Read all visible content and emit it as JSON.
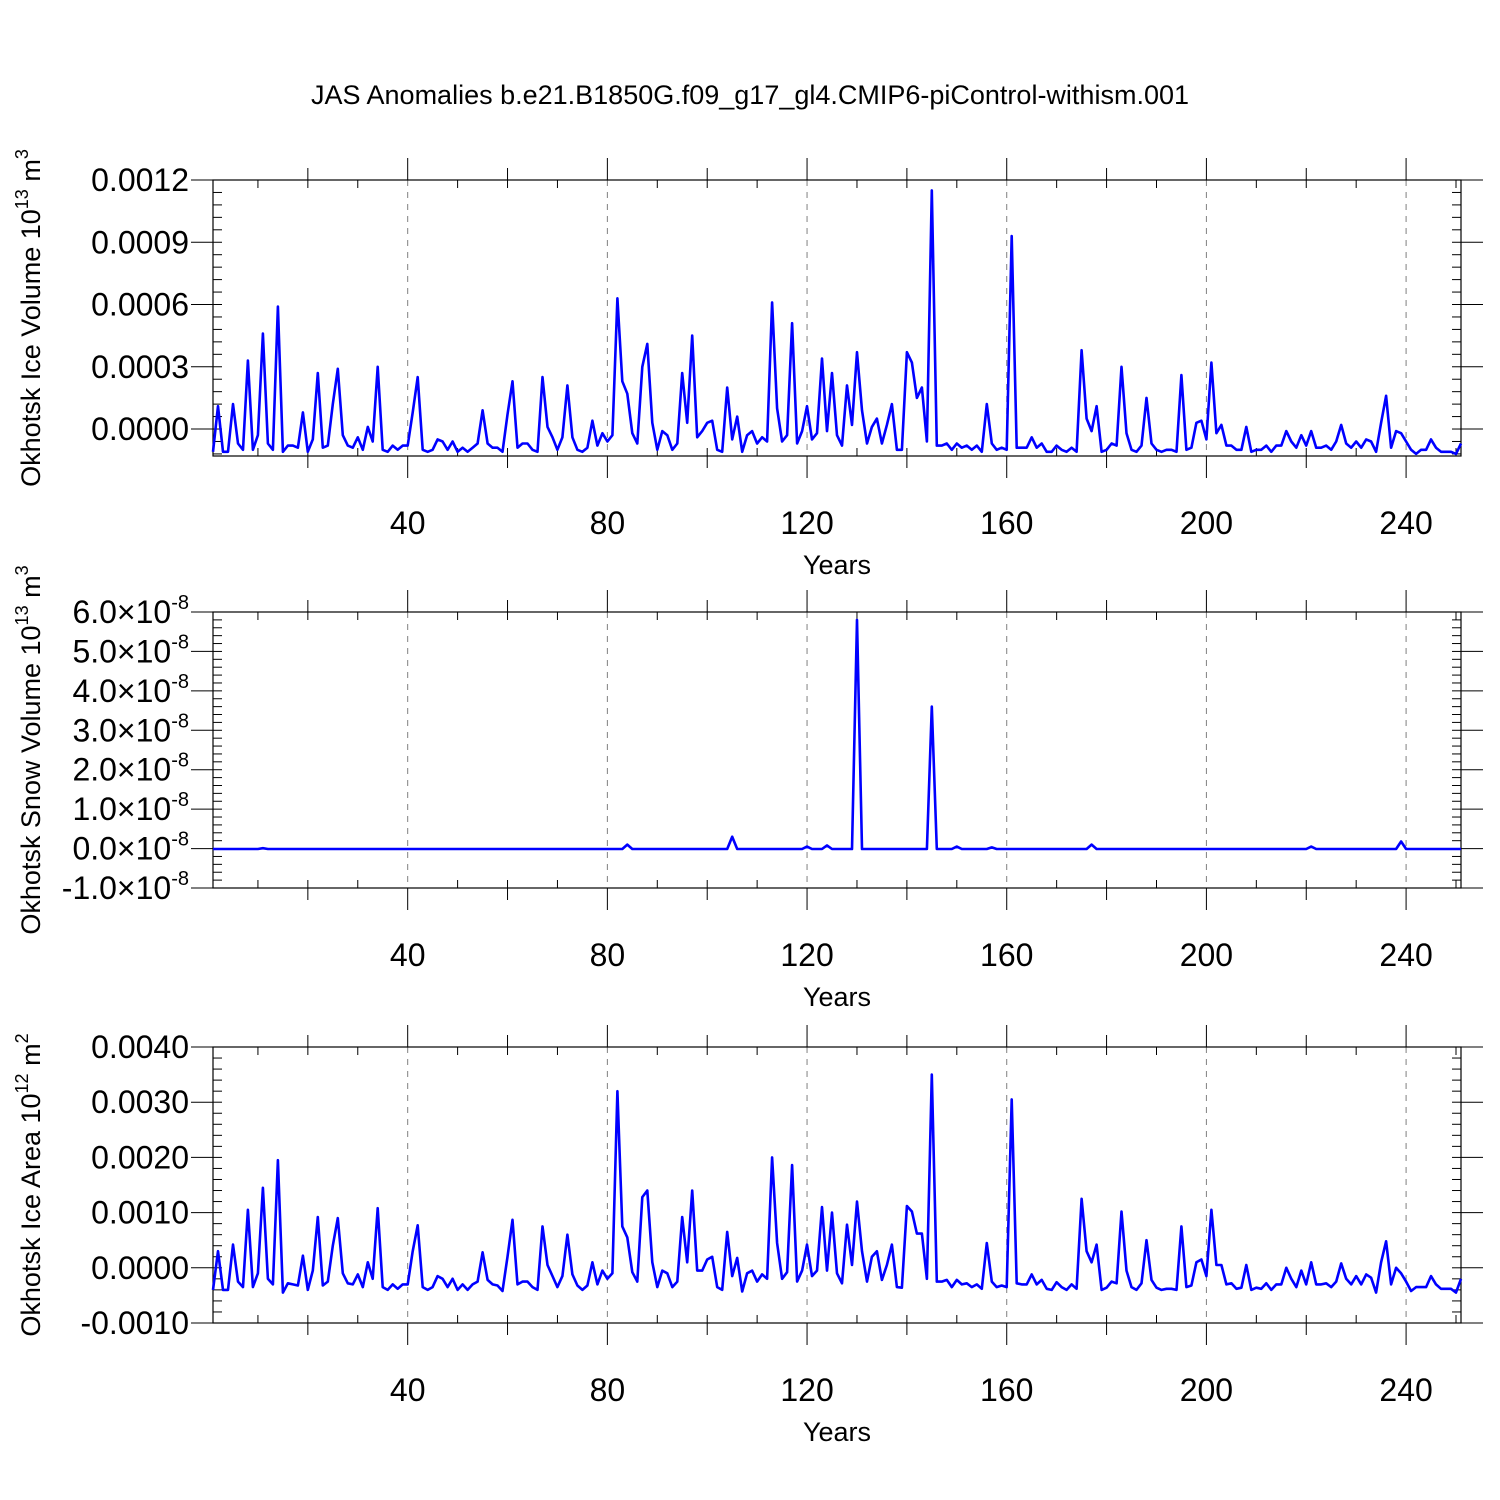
{
  "title": "JAS Anomalies b.e21.B1850G.f09_g17_gl4.CMIP6-piControl-withism.001",
  "colors": {
    "line": "#0000ff",
    "axes": "#000000",
    "grid": "#808080"
  },
  "chart_data": [
    {
      "type": "line",
      "ylabel": "Okhotsk Ice Volume 10",
      "ylabel_exp": "13",
      "ylabel_unit": " m",
      "ylabel_unit_exp": "3",
      "xlabel": "Years",
      "xlim": [
        1,
        251
      ],
      "ylim": [
        -0.00013,
        0.0012
      ],
      "xticks": [
        40,
        80,
        120,
        160,
        200,
        240
      ],
      "xtick_labels": [
        "40",
        "80",
        "120",
        "160",
        "200",
        "240"
      ],
      "yticks": [
        0.0,
        0.0003,
        0.0006,
        0.0009,
        0.0012
      ],
      "ytick_labels": [
        "0.0000",
        "0.0003",
        "0.0006",
        "0.0009",
        "0.0012"
      ],
      "grid_x": true,
      "series": [
        {
          "x_start": 1,
          "x_step": 1,
          "values": [
            -0.00011,
            0.00011,
            -0.00011,
            -0.00011,
            0.00012,
            -7e-05,
            -0.0001,
            0.00033,
            -0.0001,
            -3e-05,
            0.00046,
            -7e-05,
            -0.0001,
            0.00059,
            -0.00011,
            -8e-05,
            -8e-05,
            -9e-05,
            8e-05,
            -0.00011,
            -5e-05,
            0.00027,
            -9e-05,
            -8e-05,
            0.00012,
            0.00029,
            -3e-05,
            -8e-05,
            -9e-05,
            -4e-05,
            -0.0001,
            1e-05,
            -6e-05,
            0.0003,
            -0.0001,
            -0.00011,
            -8e-05,
            -0.0001,
            -8e-05,
            -8e-05,
            8e-05,
            0.00025,
            -0.0001,
            -0.00011,
            -0.0001,
            -5e-05,
            -6e-05,
            -0.0001,
            -6e-05,
            -0.00011,
            -9e-05,
            -0.00011,
            -9e-05,
            -7e-05,
            9e-05,
            -7e-05,
            -9e-05,
            -9e-05,
            -0.00011,
            7e-05,
            0.00023,
            -9e-05,
            -7e-05,
            -7e-05,
            -0.0001,
            -0.00011,
            0.00025,
            1e-05,
            -4e-05,
            -0.0001,
            -4e-05,
            0.00021,
            -4e-05,
            -0.0001,
            -0.00011,
            -9e-05,
            4e-05,
            -8e-05,
            -2e-05,
            -6e-05,
            -3e-05,
            0.00063,
            0.00023,
            0.00017,
            -2e-05,
            -7e-05,
            0.0003,
            0.00041,
            3e-05,
            -0.0001,
            -1e-05,
            -3e-05,
            -0.0001,
            -7e-05,
            0.00027,
            3e-05,
            0.00045,
            -4e-05,
            -1e-05,
            3e-05,
            4e-05,
            -0.0001,
            -0.00011,
            0.0002,
            -5e-05,
            6e-05,
            -0.00011,
            -3e-05,
            -1e-05,
            -7e-05,
            -4e-05,
            -6e-05,
            0.00061,
            0.0001,
            -6e-05,
            -3e-05,
            0.00051,
            -7e-05,
            -1e-05,
            0.00011,
            -5e-05,
            -2e-05,
            0.00034,
            -1e-05,
            0.00027,
            -3e-05,
            -8e-05,
            0.00021,
            2e-05,
            0.00037,
            9e-05,
            -7e-05,
            1e-05,
            5e-05,
            -7e-05,
            2e-05,
            0.00012,
            -0.0001,
            -0.0001,
            0.00037,
            0.00032,
            0.00015,
            0.0002,
            -6e-05,
            0.00115,
            -8e-05,
            -8e-05,
            -7e-05,
            -0.0001,
            -7e-05,
            -9e-05,
            -8e-05,
            -0.0001,
            -8e-05,
            -0.00011,
            0.00012,
            -7e-05,
            -0.0001,
            -9e-05,
            -0.0001,
            0.00093,
            -9e-05,
            -9e-05,
            -9e-05,
            -4e-05,
            -9e-05,
            -7e-05,
            -0.00011,
            -0.00011,
            -8e-05,
            -0.0001,
            -0.00011,
            -9e-05,
            -0.00011,
            0.00038,
            5e-05,
            -1e-05,
            0.00011,
            -0.00011,
            -0.0001,
            -7e-05,
            -8e-05,
            0.0003,
            -2e-05,
            -0.0001,
            -0.00011,
            -8e-05,
            0.00015,
            -7e-05,
            -0.0001,
            -0.00011,
            -0.0001,
            -0.0001,
            -0.00011,
            0.00026,
            -0.0001,
            -9e-05,
            3e-05,
            4e-05,
            -5e-05,
            0.00032,
            -2e-05,
            2e-05,
            -8e-05,
            -8e-05,
            -0.0001,
            -0.0001,
            1e-05,
            -0.00011,
            -0.0001,
            -0.0001,
            -8e-05,
            -0.00011,
            -8e-05,
            -8e-05,
            -1e-05,
            -6e-05,
            -9e-05,
            -3e-05,
            -8e-05,
            -1e-05,
            -9e-05,
            -9e-05,
            -8e-05,
            -0.0001,
            -6e-05,
            2e-05,
            -7e-05,
            -9e-05,
            -6e-05,
            -9e-05,
            -5e-05,
            -6e-05,
            -0.00011,
            3e-05,
            0.00016,
            -9e-05,
            -1e-05,
            -2e-05,
            -6e-05,
            -0.0001,
            -0.00012,
            -0.0001,
            -0.0001,
            -5e-05,
            -9e-05,
            -0.00011,
            -0.00011,
            -0.00011,
            -0.00012,
            -7e-05
          ]
        }
      ]
    },
    {
      "type": "line",
      "ylabel": "Okhotsk Snow Volume 10",
      "ylabel_exp": "13",
      "ylabel_unit": " m",
      "ylabel_unit_exp": "3",
      "xlabel": "Years",
      "xlim": [
        1,
        251
      ],
      "ylim": [
        -1e-08,
        6e-08
      ],
      "xticks": [
        40,
        80,
        120,
        160,
        200,
        240
      ],
      "xtick_labels": [
        "40",
        "80",
        "120",
        "160",
        "200",
        "240"
      ],
      "yticks": [
        -1e-08,
        0.0,
        1e-08,
        2e-08,
        3e-08,
        4e-08,
        5e-08,
        6e-08
      ],
      "ytick_labels": [
        "-1.0",
        "0.0",
        "1.0",
        "2.0",
        "3.0",
        "4.0",
        "5.0",
        "6.0"
      ],
      "ytick_suffix": "×10",
      "ytick_exp": "-8",
      "grid_x": true,
      "series": [
        {
          "x_start": 1,
          "x_step": 1,
          "spikes": [
            [
              11,
              1e-10
            ],
            [
              84,
              1e-09
            ],
            [
              105,
              3e-09
            ],
            [
              120,
              5e-10
            ],
            [
              124,
              8e-10
            ],
            [
              130,
              5.8e-08
            ],
            [
              145,
              3.6e-08
            ],
            [
              150,
              5e-10
            ],
            [
              157,
              3e-10
            ],
            [
              177,
              1e-09
            ],
            [
              221,
              5e-10
            ],
            [
              239,
              1.8e-09
            ]
          ],
          "baseline": -1e-10
        }
      ]
    },
    {
      "type": "line",
      "ylabel": "Okhotsk Ice Area 10",
      "ylabel_exp": "12",
      "ylabel_unit": " m",
      "ylabel_unit_exp": "2",
      "xlabel": "Years",
      "xlim": [
        1,
        251
      ],
      "ylim": [
        -0.001,
        0.004
      ],
      "xticks": [
        40,
        80,
        120,
        160,
        200,
        240
      ],
      "xtick_labels": [
        "40",
        "80",
        "120",
        "160",
        "200",
        "240"
      ],
      "yticks": [
        -0.001,
        0.0,
        0.001,
        0.002,
        0.003,
        0.004
      ],
      "ytick_labels": [
        "-0.0010",
        "0.0000",
        "0.0010",
        "0.0020",
        "0.0030",
        "0.0040"
      ],
      "grid_x": true,
      "series": [
        {
          "x_start": 1,
          "x_step": 1,
          "values": [
            -0.0004,
            0.0003,
            -0.0004,
            -0.0004,
            0.00042,
            -0.00025,
            -0.00035,
            0.00105,
            -0.00035,
            -0.0001,
            0.00145,
            -0.0002,
            -0.0003,
            0.00195,
            -0.00045,
            -0.00028,
            -0.0003,
            -0.00032,
            0.00022,
            -0.0004,
            -5e-05,
            0.00092,
            -0.00032,
            -0.00025,
            0.0004,
            0.0009,
            -0.0001,
            -0.00028,
            -0.0003,
            -0.00012,
            -0.00035,
            0.0001,
            -0.0002,
            0.00108,
            -0.00035,
            -0.0004,
            -0.0003,
            -0.00038,
            -0.0003,
            -0.0003,
            0.0003,
            0.00077,
            -0.00035,
            -0.0004,
            -0.00035,
            -0.00015,
            -0.0002,
            -0.00035,
            -0.0002,
            -0.0004,
            -0.0003,
            -0.0004,
            -0.0003,
            -0.00025,
            0.00028,
            -0.00022,
            -0.0003,
            -0.00032,
            -0.00042,
            0.0002,
            0.00087,
            -0.0003,
            -0.00025,
            -0.00025,
            -0.00035,
            -0.0004,
            0.00075,
            5e-05,
            -0.00015,
            -0.00035,
            -0.00015,
            0.0006,
            -0.00012,
            -0.00032,
            -0.0004,
            -0.00032,
            0.0001,
            -0.0003,
            -5e-05,
            -0.0002,
            -0.0001,
            0.0032,
            0.00075,
            0.00055,
            -8e-05,
            -0.00025,
            0.00128,
            0.0014,
            0.0001,
            -0.00035,
            -5e-05,
            -0.0001,
            -0.00035,
            -0.00025,
            0.00092,
            0.0001,
            0.0014,
            -5e-05,
            -5e-05,
            0.00015,
            0.0002,
            -0.00035,
            -0.0004,
            0.00065,
            -0.00015,
            0.00018,
            -0.00043,
            -0.0001,
            -5e-05,
            -0.00025,
            -0.00012,
            -0.0002,
            0.002,
            0.00045,
            -0.0002,
            -8e-05,
            0.00186,
            -0.00025,
            -5e-05,
            0.00042,
            -0.00015,
            -5e-05,
            0.0011,
            -5e-05,
            0.001,
            -0.0001,
            -0.00028,
            0.00078,
            5e-05,
            0.0012,
            0.0003,
            -0.00025,
            0.0002,
            0.0003,
            -0.00022,
            5e-05,
            0.00042,
            -0.00035,
            -0.00036,
            0.00112,
            0.00102,
            0.00062,
            0.00062,
            -0.0002,
            0.0035,
            -0.00025,
            -0.00025,
            -0.00022,
            -0.00035,
            -0.00022,
            -0.0003,
            -0.00028,
            -0.00035,
            -0.0003,
            -0.00038,
            0.00045,
            -0.00025,
            -0.00035,
            -0.00032,
            -0.00035,
            0.00305,
            -0.00028,
            -0.0003,
            -0.0003,
            -0.00012,
            -0.0003,
            -0.00022,
            -0.00038,
            -0.0004,
            -0.00026,
            -0.00035,
            -0.0004,
            -0.0003,
            -0.00038,
            0.00125,
            0.0003,
            0.0001,
            0.00042,
            -0.0004,
            -0.00036,
            -0.00025,
            -0.00028,
            0.00102,
            -5e-05,
            -0.00035,
            -0.0004,
            -0.00028,
            0.0005,
            -0.00022,
            -0.00036,
            -0.0004,
            -0.00038,
            -0.00038,
            -0.0004,
            0.00075,
            -0.00035,
            -0.00032,
            0.0001,
            0.00015,
            -0.00015,
            0.00105,
            5e-05,
            5e-05,
            -0.0003,
            -0.00028,
            -0.00038,
            -0.00036,
            5e-05,
            -0.0004,
            -0.00036,
            -0.00038,
            -0.00028,
            -0.0004,
            -0.0003,
            -0.0003,
            0.0,
            -0.0002,
            -0.00035,
            -5e-05,
            -0.0003,
            0.0001,
            -0.0003,
            -0.0003,
            -0.00028,
            -0.00035,
            -0.00025,
            8e-05,
            -0.0002,
            -0.0003,
            -0.00015,
            -0.0003,
            -0.00012,
            -0.00018,
            -0.00045,
            0.0001,
            0.00048,
            -0.0003,
            0.0,
            -0.0001,
            -0.00025,
            -0.00042,
            -0.00035,
            -0.00035,
            -0.00035,
            -0.00015,
            -0.0003,
            -0.00038,
            -0.00038,
            -0.00038,
            -0.00045,
            -0.0002
          ]
        }
      ]
    }
  ]
}
